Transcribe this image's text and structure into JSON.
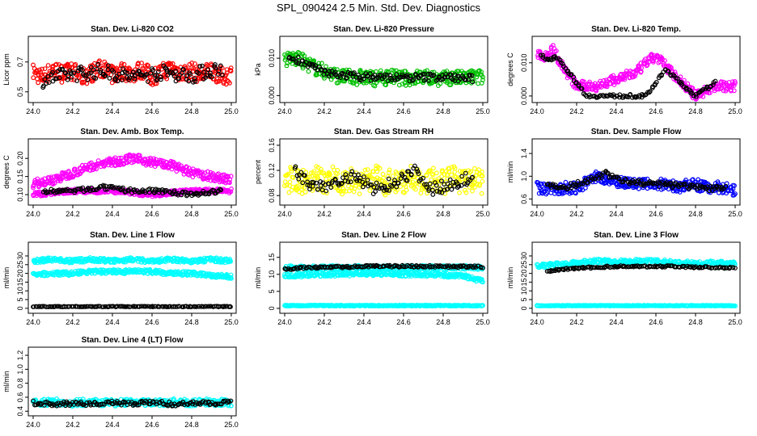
{
  "title": "SPL_090424  2.5 Min. Std. Dev. Diagnostics",
  "x_ticks": [
    "24.0",
    "24.2",
    "24.4",
    "24.6",
    "24.8",
    "25.0"
  ],
  "chart_data": [
    {
      "type": "scatter",
      "title": "Stan. Dev. Li-820 CO2",
      "ylabel": "Licor ppm",
      "xlim": [
        24.0,
        25.0
      ],
      "ylim": [
        0.45,
        0.85
      ],
      "yticks": [
        {
          "v": 0.5,
          "label": "0.5"
        },
        {
          "v": 0.7,
          "label": "0.7"
        }
      ],
      "series": [
        {
          "color": "#ff0000",
          "x": [
            24.0,
            24.05,
            24.1,
            24.15,
            24.2,
            24.25,
            24.3,
            24.35,
            24.4,
            24.45,
            24.5,
            24.55,
            24.6,
            24.65,
            24.7,
            24.75,
            24.8,
            24.85,
            24.9,
            24.95,
            25.0
          ],
          "y": [
            0.63,
            0.6,
            0.65,
            0.62,
            0.64,
            0.6,
            0.63,
            0.66,
            0.61,
            0.64,
            0.62,
            0.65,
            0.6,
            0.63,
            0.66,
            0.62,
            0.64,
            0.61,
            0.65,
            0.6,
            0.62
          ],
          "spread": 0.06
        },
        {
          "color": "#000000",
          "x": [
            24.05,
            24.2,
            24.35,
            24.5,
            24.65,
            24.8,
            24.95
          ],
          "y": [
            0.58,
            0.62,
            0.64,
            0.6,
            0.63,
            0.61,
            0.66
          ],
          "spread": 0.05
        }
      ]
    },
    {
      "type": "scatter",
      "title": "Stan. Dev. Li-820 Pressure",
      "ylabel": "kPa",
      "xlim": [
        24.0,
        25.0
      ],
      "ylim": [
        -0.001,
        0.015
      ],
      "yticks": [
        {
          "v": 0.0,
          "label": "0.000"
        },
        {
          "v": 0.01,
          "label": "0.010"
        }
      ],
      "series": [
        {
          "color": "#00c000",
          "x": [
            24.0,
            24.05,
            24.1,
            24.15,
            24.2,
            24.25,
            24.3,
            24.35,
            24.4,
            24.45,
            24.5,
            24.55,
            24.6,
            24.65,
            24.7,
            24.75,
            24.8,
            24.85,
            24.9,
            24.95,
            25.0
          ],
          "y": [
            0.0095,
            0.01,
            0.009,
            0.0075,
            0.0065,
            0.0055,
            0.005,
            0.0048,
            0.005,
            0.0045,
            0.0048,
            0.005,
            0.0046,
            0.0048,
            0.005,
            0.0047,
            0.0045,
            0.0048,
            0.0046,
            0.005,
            0.0048
          ],
          "spread": 0.002
        },
        {
          "color": "#000000",
          "x": [
            24.02,
            24.08,
            24.2,
            24.4,
            24.6,
            24.8,
            24.95
          ],
          "y": [
            0.01,
            0.0095,
            0.006,
            0.005,
            0.0048,
            0.005,
            0.0045
          ],
          "spread": 0.001
        }
      ]
    },
    {
      "type": "scatter",
      "title": "Stan. Dev. Li-820 Temp.",
      "ylabel": "degrees C",
      "xlim": [
        24.0,
        25.0
      ],
      "ylim": [
        -0.001,
        0.017
      ],
      "yticks": [
        {
          "v": 0.0,
          "label": "0.000"
        },
        {
          "v": 0.01,
          "label": "0.010"
        }
      ],
      "series": [
        {
          "color": "#ff00ff",
          "x": [
            24.0,
            24.04,
            24.08,
            24.12,
            24.16,
            24.2,
            24.3,
            24.4,
            24.5,
            24.55,
            24.6,
            24.65,
            24.7,
            24.75,
            24.8,
            24.9,
            25.0
          ],
          "y": [
            0.013,
            0.012,
            0.014,
            0.01,
            0.006,
            0.003,
            0.003,
            0.005,
            0.007,
            0.01,
            0.012,
            0.009,
            0.006,
            0.003,
            0.0,
            0.003,
            0.003
          ],
          "spread": 0.0015
        },
        {
          "color": "#000000",
          "x": [
            24.02,
            24.06,
            24.1,
            24.25,
            24.4,
            24.55,
            24.65,
            24.8,
            24.9
          ],
          "y": [
            0.012,
            0.011,
            0.012,
            0.0,
            0.0,
            0.0,
            0.008,
            0.0,
            0.004
          ],
          "spread": 0.0005
        }
      ]
    },
    {
      "type": "scatter",
      "title": "Stan. Dev. Amb. Box Temp.",
      "ylabel": "degrees C",
      "xlim": [
        24.0,
        25.0
      ],
      "ylim": [
        0.08,
        0.245
      ],
      "yticks": [
        {
          "v": 0.1,
          "label": "0.10"
        },
        {
          "v": 0.15,
          "label": "0.15"
        },
        {
          "v": 0.2,
          "label": "0.20"
        }
      ],
      "series": [
        {
          "color": "#ff00ff",
          "x": [
            24.0,
            24.1,
            24.2,
            24.3,
            24.4,
            24.5,
            24.6,
            24.7,
            24.8,
            24.9,
            25.0
          ],
          "y": [
            0.13,
            0.14,
            0.16,
            0.18,
            0.19,
            0.2,
            0.19,
            0.18,
            0.16,
            0.15,
            0.14
          ],
          "spread": 0.012
        },
        {
          "color": "#ff00ff",
          "x": [
            24.0,
            24.2,
            24.4,
            24.6,
            24.8,
            25.0
          ],
          "y": [
            0.1,
            0.11,
            0.11,
            0.1,
            0.11,
            0.11
          ],
          "spread": 0.006
        },
        {
          "color": "#000000",
          "x": [
            24.05,
            24.2,
            24.35,
            24.5,
            24.65,
            24.8,
            24.95
          ],
          "y": [
            0.11,
            0.11,
            0.12,
            0.11,
            0.11,
            0.1,
            0.11
          ],
          "spread": 0.006
        }
      ]
    },
    {
      "type": "scatter",
      "title": "Stan. Dev. Gas Stream RH",
      "ylabel": "percent",
      "xlim": [
        24.0,
        25.0
      ],
      "ylim": [
        0.07,
        0.165
      ],
      "yticks": [
        {
          "v": 0.08,
          "label": "0.08"
        },
        {
          "v": 0.12,
          "label": "0.12"
        },
        {
          "v": 0.16,
          "label": "0.16"
        }
      ],
      "series": [
        {
          "color": "#ffff00",
          "x": [
            24.0,
            24.05,
            24.1,
            24.15,
            24.2,
            24.25,
            24.3,
            24.35,
            24.4,
            24.45,
            24.5,
            24.55,
            24.6,
            24.65,
            24.7,
            24.75,
            24.8,
            24.85,
            24.9,
            24.95,
            25.0
          ],
          "y": [
            0.1,
            0.11,
            0.1,
            0.11,
            0.1,
            0.11,
            0.1,
            0.105,
            0.1,
            0.11,
            0.1,
            0.105,
            0.1,
            0.11,
            0.1,
            0.105,
            0.1,
            0.11,
            0.1,
            0.105,
            0.1
          ],
          "spread": 0.02
        },
        {
          "color": "#000000",
          "x": [
            24.05,
            24.15,
            24.25,
            24.35,
            24.45,
            24.55,
            24.65,
            24.75,
            24.85,
            24.95
          ],
          "y": [
            0.12,
            0.09,
            0.1,
            0.11,
            0.09,
            0.1,
            0.12,
            0.09,
            0.1,
            0.11
          ],
          "spread": 0.01
        }
      ]
    },
    {
      "type": "scatter",
      "title": "Stan. Dev. Sample Flow",
      "ylabel": "ml/min",
      "xlim": [
        24.0,
        25.0
      ],
      "ylim": [
        0.55,
        1.6
      ],
      "yticks": [
        {
          "v": 0.6,
          "label": "0.6"
        },
        {
          "v": 1.0,
          "label": "1.0"
        },
        {
          "v": 1.4,
          "label": "1.4"
        }
      ],
      "series": [
        {
          "color": "#0000ff",
          "x": [
            24.0,
            24.05,
            24.1,
            24.15,
            24.2,
            24.25,
            24.3,
            24.35,
            24.4,
            24.45,
            24.5,
            24.55,
            24.6,
            24.65,
            24.7,
            24.75,
            24.8,
            24.85,
            24.9,
            24.95,
            25.0
          ],
          "y": [
            0.8,
            0.78,
            0.76,
            0.8,
            0.78,
            0.9,
            1.0,
            0.95,
            0.92,
            0.88,
            0.85,
            0.86,
            0.82,
            0.9,
            0.8,
            0.84,
            0.86,
            0.8,
            0.82,
            0.78,
            0.76
          ],
          "spread": 0.1
        },
        {
          "color": "#000000",
          "x": [
            24.05,
            24.15,
            24.25,
            24.35,
            24.45,
            24.55,
            24.65,
            24.75,
            24.85,
            24.95
          ],
          "y": [
            0.82,
            0.8,
            0.92,
            1.05,
            0.9,
            0.88,
            0.85,
            0.83,
            0.8,
            0.78
          ],
          "spread": 0.05
        }
      ]
    },
    {
      "type": "scatter",
      "title": "Stan. Dev. Line 1 Flow",
      "ylabel": "ml/min",
      "xlim": [
        24.0,
        25.0
      ],
      "ylim": [
        -1,
        36
      ],
      "yticks": [
        {
          "v": 0,
          "label": "0"
        },
        {
          "v": 5,
          "label": "5"
        },
        {
          "v": 10,
          "label": "10"
        },
        {
          "v": 15,
          "label": "15"
        },
        {
          "v": 20,
          "label": "20"
        },
        {
          "v": 25,
          "label": "25"
        },
        {
          "v": 30,
          "label": "30"
        }
      ],
      "series": [
        {
          "color": "#00ffff",
          "x": [
            24.0,
            24.1,
            24.2,
            24.3,
            24.4,
            24.5,
            24.6,
            24.7,
            24.8,
            24.9,
            25.0
          ],
          "y": [
            27,
            28,
            27,
            28,
            27,
            28,
            27,
            28,
            27,
            28,
            27
          ],
          "spread": 1.2
        },
        {
          "color": "#00ffff",
          "x": [
            24.0,
            24.1,
            24.2,
            24.3,
            24.4,
            24.5,
            24.6,
            24.7,
            24.8,
            24.9,
            25.0
          ],
          "y": [
            19,
            20,
            20,
            21,
            21,
            21,
            21,
            20,
            20,
            19,
            18
          ],
          "spread": 1.2
        },
        {
          "color": "#000000",
          "x": [
            24.0,
            24.1,
            24.2,
            24.3,
            24.4,
            24.5,
            24.6,
            24.7,
            24.8,
            24.9,
            25.0
          ],
          "y": [
            1,
            1,
            1,
            1,
            1,
            1,
            1,
            1,
            1,
            1,
            1
          ],
          "spread": 0.2
        }
      ]
    },
    {
      "type": "scatter",
      "title": "Stan. Dev. Line 2 Flow",
      "ylabel": "ml/min",
      "xlim": [
        24.0,
        25.0
      ],
      "ylim": [
        -0.5,
        18.5
      ],
      "yticks": [
        {
          "v": 0,
          "label": "0"
        },
        {
          "v": 5,
          "label": "5"
        },
        {
          "v": 10,
          "label": "10"
        },
        {
          "v": 15,
          "label": "15"
        }
      ],
      "series": [
        {
          "color": "#00ffff",
          "x": [
            24.0,
            24.1,
            24.2,
            24.3,
            24.4,
            24.5,
            24.6,
            24.7,
            24.8,
            24.9,
            25.0
          ],
          "y": [
            12,
            12,
            12,
            12,
            12,
            12,
            12,
            12,
            12,
            12,
            12
          ],
          "spread": 0.6
        },
        {
          "color": "#00ffff",
          "x": [
            24.0,
            24.1,
            24.2,
            24.3,
            24.4,
            24.5,
            24.6,
            24.7,
            24.8,
            24.9,
            25.0
          ],
          "y": [
            9.5,
            9.8,
            10,
            10,
            10.2,
            10.2,
            10,
            10,
            9.8,
            9.5,
            8
          ],
          "spread": 0.6
        },
        {
          "color": "#00ffff",
          "x": [
            24.0,
            24.1,
            24.2,
            24.3,
            24.4,
            24.5,
            24.6,
            24.7,
            24.8,
            24.9,
            25.0
          ],
          "y": [
            0.8,
            0.8,
            0.8,
            0.8,
            0.8,
            0.8,
            0.8,
            0.8,
            0.8,
            0.8,
            0.8
          ],
          "spread": 0.15
        },
        {
          "color": "#000000",
          "x": [
            24.0,
            24.1,
            24.2,
            24.3,
            24.4,
            24.5,
            24.6,
            24.7,
            24.8,
            24.9,
            25.0
          ],
          "y": [
            11.5,
            12,
            12,
            12.2,
            12.3,
            12.4,
            12.4,
            12.4,
            12.3,
            12.3,
            12.2
          ],
          "spread": 0.3
        }
      ]
    },
    {
      "type": "scatter",
      "title": "Stan. Dev. Line 3 Flow",
      "ylabel": "ml/min",
      "xlim": [
        24.0,
        25.0
      ],
      "ylim": [
        -1,
        36
      ],
      "yticks": [
        {
          "v": 0,
          "label": "0"
        },
        {
          "v": 5,
          "label": "5"
        },
        {
          "v": 10,
          "label": "10"
        },
        {
          "v": 15,
          "label": "15"
        },
        {
          "v": 20,
          "label": "20"
        },
        {
          "v": 25,
          "label": "25"
        },
        {
          "v": 30,
          "label": "30"
        }
      ],
      "series": [
        {
          "color": "#00ffff",
          "x": [
            24.0,
            24.1,
            24.2,
            24.3,
            24.4,
            24.5,
            24.6,
            24.7,
            24.8,
            24.9,
            25.0
          ],
          "y": [
            24,
            25,
            26,
            27,
            27,
            27,
            27,
            26,
            26,
            26,
            26
          ],
          "spread": 1.2
        },
        {
          "color": "#00ffff",
          "x": [
            24.0,
            24.1,
            24.2,
            24.3,
            24.4,
            24.5,
            24.6,
            24.7,
            24.8,
            24.9,
            25.0
          ],
          "y": [
            1.5,
            1.5,
            1.5,
            1.5,
            1.5,
            1.5,
            1.5,
            1.5,
            1.5,
            1.5,
            1.5
          ],
          "spread": 0.2
        },
        {
          "color": "#000000",
          "x": [
            24.05,
            24.1,
            24.2,
            24.3,
            24.4,
            24.5,
            24.6,
            24.7,
            24.8,
            24.9,
            25.0
          ],
          "y": [
            21,
            22,
            23,
            23.5,
            24,
            24,
            24,
            24,
            23.5,
            23.5,
            23
          ],
          "spread": 0.5
        }
      ]
    },
    {
      "type": "scatter",
      "title": "Stan. Dev. Line 4 (LT) Flow",
      "ylabel": "ml/min",
      "xlim": [
        24.0,
        25.0
      ],
      "ylim": [
        0.38,
        1.27
      ],
      "yticks": [
        {
          "v": 0.4,
          "label": "0.4"
        },
        {
          "v": 0.6,
          "label": "0.6"
        },
        {
          "v": 0.8,
          "label": "0.8"
        },
        {
          "v": 1.0,
          "label": "1.0"
        },
        {
          "v": 1.2,
          "label": "1.2"
        }
      ],
      "series": [
        {
          "color": "#00ffff",
          "x": [
            24.0,
            24.1,
            24.2,
            24.3,
            24.4,
            24.5,
            24.6,
            24.7,
            24.8,
            24.9,
            25.0
          ],
          "y": [
            0.52,
            0.53,
            0.52,
            0.53,
            0.52,
            0.53,
            0.52,
            0.53,
            0.52,
            0.53,
            0.52
          ],
          "spread": 0.05
        },
        {
          "color": "#000000",
          "x": [
            24.0,
            24.1,
            24.2,
            24.3,
            24.4,
            24.5,
            24.6,
            24.7,
            24.8,
            24.9,
            25.0
          ],
          "y": [
            0.52,
            0.5,
            0.51,
            0.5,
            0.52,
            0.51,
            0.53,
            0.5,
            0.52,
            0.51,
            0.53
          ],
          "spread": 0.03
        }
      ]
    }
  ]
}
